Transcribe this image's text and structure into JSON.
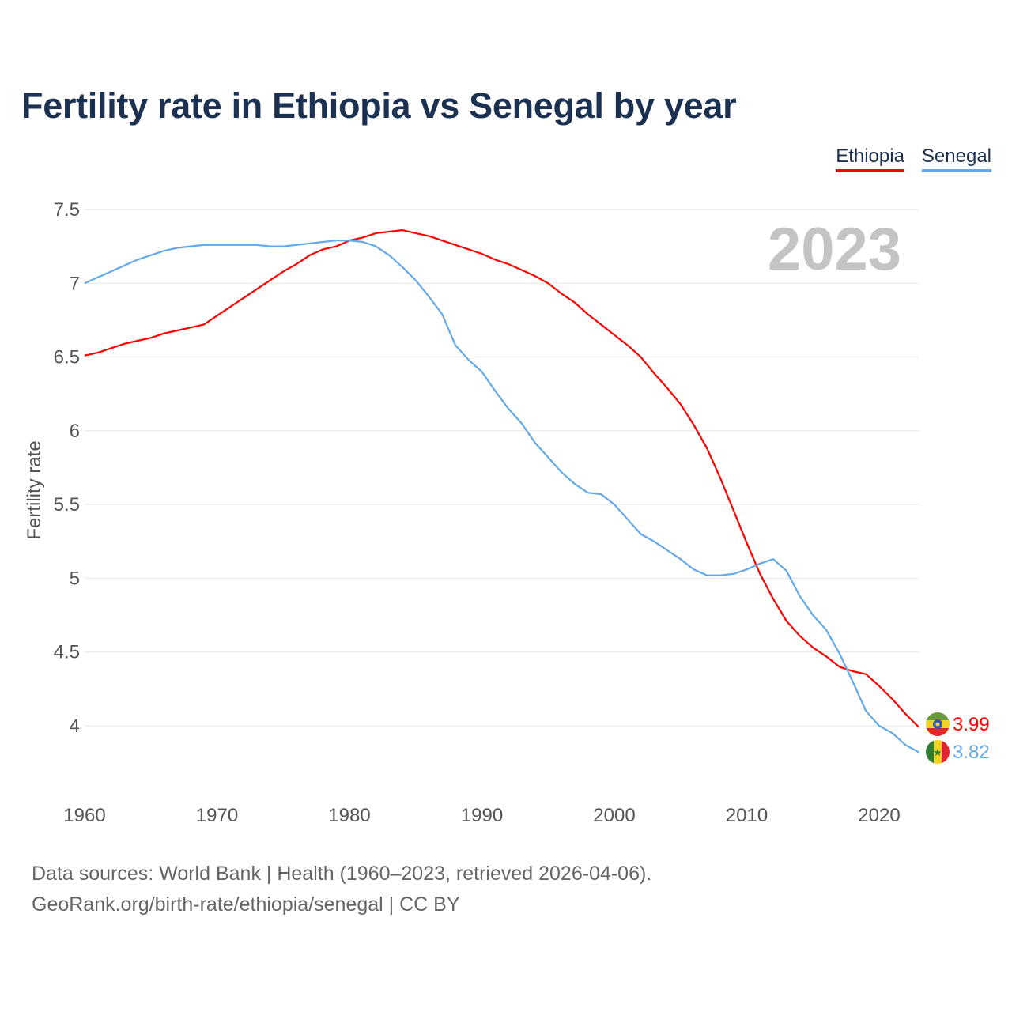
{
  "title": "Fertility rate in Ethiopia vs Senegal by year",
  "legend": {
    "ethiopia": "Ethiopia",
    "senegal": "Senegal"
  },
  "current_year": "2023",
  "footer": {
    "line1": "Data sources: World Bank | Health (1960–2023, retrieved 2026-04-06).",
    "line2": "GeoRank.org/birth-rate/ethiopia/senegal | CC BY"
  },
  "colors": {
    "ethiopia": "#ff0000",
    "senegal": "#63a9e8",
    "title": "#1c3151"
  },
  "chart_data": {
    "type": "line",
    "title": "Fertility rate in Ethiopia vs Senegal by year",
    "xlabel": "",
    "ylabel": "Fertility rate",
    "xlim": [
      1960,
      2023
    ],
    "ylim": [
      3.5,
      7.5
    ],
    "yticks": [
      4,
      4.5,
      5,
      5.5,
      6,
      6.5,
      7,
      7.5
    ],
    "ytick_labels": [
      "4",
      "4.5",
      "5",
      "5.5",
      "6",
      "6.5",
      "7",
      "7.5"
    ],
    "xticks": [
      1960,
      1970,
      1980,
      1990,
      2000,
      2010,
      2020
    ],
    "xtick_labels": [
      "1960",
      "1970",
      "1980",
      "1990",
      "2000",
      "2010",
      "2020"
    ],
    "grid": true,
    "legend_position": "top-right",
    "x": [
      1960,
      1961,
      1962,
      1963,
      1964,
      1965,
      1966,
      1967,
      1968,
      1969,
      1970,
      1971,
      1972,
      1973,
      1974,
      1975,
      1976,
      1977,
      1978,
      1979,
      1980,
      1981,
      1982,
      1983,
      1984,
      1985,
      1986,
      1987,
      1988,
      1989,
      1990,
      1991,
      1992,
      1993,
      1994,
      1995,
      1996,
      1997,
      1998,
      1999,
      2000,
      2001,
      2002,
      2003,
      2004,
      2005,
      2006,
      2007,
      2008,
      2009,
      2010,
      2011,
      2012,
      2013,
      2014,
      2015,
      2016,
      2017,
      2018,
      2019,
      2020,
      2021,
      2022,
      2023
    ],
    "series": [
      {
        "name": "Ethiopia",
        "end_label": "3.99",
        "values": [
          6.51,
          6.53,
          6.56,
          6.59,
          6.61,
          6.63,
          6.66,
          6.68,
          6.7,
          6.72,
          6.78,
          6.84,
          6.9,
          6.96,
          7.02,
          7.08,
          7.13,
          7.19,
          7.23,
          7.25,
          7.29,
          7.31,
          7.34,
          7.35,
          7.36,
          7.34,
          7.32,
          7.29,
          7.26,
          7.23,
          7.2,
          7.16,
          7.13,
          7.09,
          7.05,
          7.0,
          6.93,
          6.87,
          6.79,
          6.72,
          6.65,
          6.58,
          6.5,
          6.39,
          6.29,
          6.18,
          6.04,
          5.88,
          5.68,
          5.46,
          5.24,
          5.03,
          4.86,
          4.71,
          4.61,
          4.53,
          4.47,
          4.4,
          4.37,
          4.35,
          4.27,
          4.18,
          4.08,
          3.99
        ]
      },
      {
        "name": "Senegal",
        "end_label": "3.82",
        "values": [
          7.0,
          7.04,
          7.08,
          7.12,
          7.16,
          7.19,
          7.22,
          7.24,
          7.25,
          7.26,
          7.26,
          7.26,
          7.26,
          7.26,
          7.25,
          7.25,
          7.26,
          7.27,
          7.28,
          7.29,
          7.29,
          7.28,
          7.25,
          7.19,
          7.11,
          7.02,
          6.91,
          6.79,
          6.58,
          6.48,
          6.4,
          6.27,
          6.15,
          6.05,
          5.92,
          5.82,
          5.72,
          5.64,
          5.58,
          5.57,
          5.5,
          5.4,
          5.3,
          5.25,
          5.19,
          5.13,
          5.06,
          5.02,
          5.02,
          5.03,
          5.06,
          5.1,
          5.13,
          5.05,
          4.88,
          4.75,
          4.65,
          4.49,
          4.3,
          4.1,
          4.0,
          3.95,
          3.87,
          3.82
        ]
      }
    ]
  }
}
